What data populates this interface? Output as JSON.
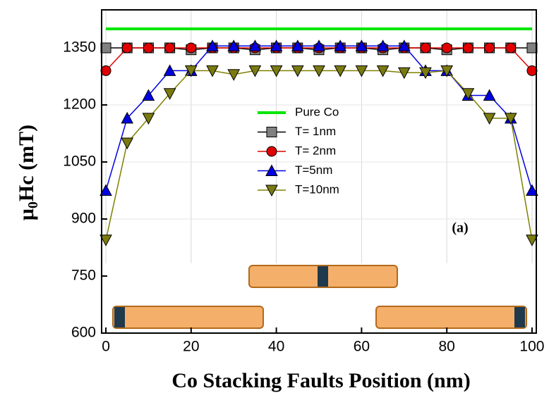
{
  "chart_data": {
    "type": "line",
    "xlabel": "Co Stacking Faults Position (nm)",
    "ylabel": [
      "μ",
      "0",
      "Hc (mT)"
    ],
    "annotation": "(a)",
    "x": [
      0,
      5,
      10,
      15,
      20,
      25,
      30,
      35,
      40,
      45,
      50,
      55,
      60,
      65,
      70,
      75,
      80,
      85,
      90,
      95,
      100
    ],
    "series": [
      {
        "name": "Pure Co",
        "color": "#00e600",
        "marker": "none",
        "values": [
          1400,
          1400,
          1400,
          1400,
          1400,
          1400,
          1400,
          1400,
          1400,
          1400,
          1400,
          1400,
          1400,
          1400,
          1400,
          1400,
          1400,
          1400,
          1400,
          1400,
          1400
        ]
      },
      {
        "name": "T= 1nm",
        "color": "#000000",
        "marker_color": "#808080",
        "marker": "square",
        "values": [
          1350,
          1350,
          1350,
          1350,
          1345,
          1350,
          1350,
          1345,
          1350,
          1350,
          1345,
          1350,
          1350,
          1345,
          1350,
          1350,
          1345,
          1350,
          1350,
          1350,
          1350
        ]
      },
      {
        "name": "T= 2nm",
        "color": "#e00000",
        "marker_color": "#e00000",
        "marker": "circle",
        "values": [
          1290,
          1350,
          1350,
          1350,
          1350,
          1350,
          1350,
          1350,
          1350,
          1350,
          1350,
          1350,
          1350,
          1350,
          1350,
          1350,
          1350,
          1350,
          1350,
          1350,
          1290
        ]
      },
      {
        "name": "T=5nm",
        "color": "#0000e0",
        "marker_color": "#0000e0",
        "marker": "triangle-up",
        "values": [
          975,
          1165,
          1225,
          1290,
          1290,
          1355,
          1355,
          1355,
          1355,
          1355,
          1355,
          1355,
          1355,
          1355,
          1355,
          1290,
          1290,
          1225,
          1225,
          1165,
          975
        ]
      },
      {
        "name": "T=10nm",
        "color": "#808000",
        "marker_color": "#7a7a10",
        "marker": "triangle-down",
        "values": [
          845,
          1100,
          1165,
          1230,
          1290,
          1290,
          1280,
          1290,
          1290,
          1290,
          1290,
          1290,
          1290,
          1290,
          1285,
          1285,
          1290,
          1230,
          1165,
          1165,
          845
        ]
      }
    ],
    "xlim": [
      -1,
      101
    ],
    "xticks": [
      0,
      20,
      40,
      60,
      80,
      100
    ],
    "ylim": [
      600,
      1450
    ],
    "yticks": [
      600,
      750,
      900,
      1050,
      1200,
      1350
    ],
    "grid": true
  }
}
